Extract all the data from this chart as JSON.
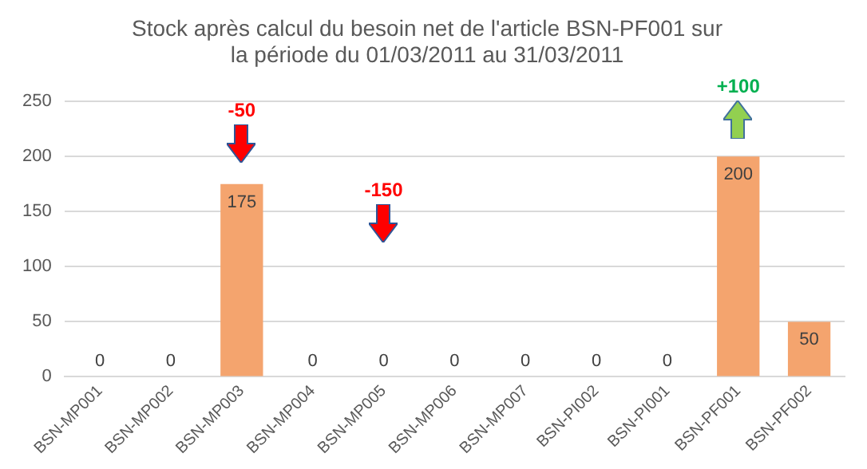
{
  "chart_data": {
    "type": "bar",
    "title": "Stock après calcul du besoin net de l'article BSN-PF001 sur\nla période du 01/03/2011 au 31/03/2011",
    "categories": [
      "BSN-MP001",
      "BSN-MP002",
      "BSN-MP003",
      "BSN-MP004",
      "BSN-MP005",
      "BSN-MP006",
      "BSN-MP007",
      "BSN-PI002",
      "BSN-PI001",
      "BSN-PF001",
      "BSN-PF002"
    ],
    "values": [
      0,
      0,
      175,
      0,
      0,
      0,
      0,
      0,
      0,
      200,
      50
    ],
    "color": "#f4a46e",
    "ylim": [
      0,
      250
    ],
    "yticks": [
      0,
      50,
      100,
      150,
      200,
      250
    ],
    "grid": "y",
    "legend": false,
    "data_labels": true,
    "annotations": [
      "-50",
      "-150",
      "+100"
    ]
  }
}
